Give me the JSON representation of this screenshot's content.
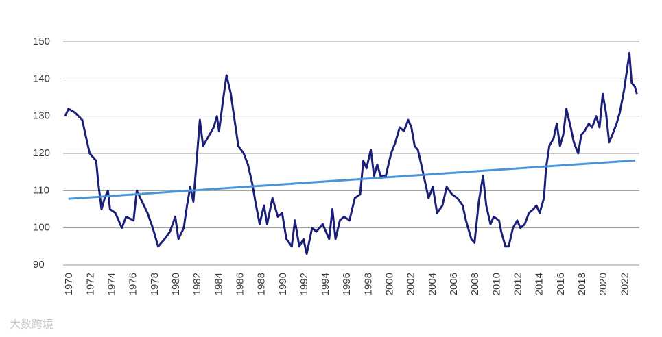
{
  "chart_data": {
    "type": "line",
    "watermark": "大数跨境",
    "xlim": [
      1969.6,
      2023.2
    ],
    "xticks": [
      1970,
      1972,
      1974,
      1976,
      1978,
      1980,
      1982,
      1984,
      1986,
      1988,
      1990,
      1992,
      1994,
      1996,
      1998,
      2000,
      2002,
      2004,
      2006,
      2008,
      2010,
      2012,
      2014,
      2016,
      2018,
      2020,
      2022
    ],
    "ylim": [
      90,
      150
    ],
    "yticks": [
      90,
      100,
      110,
      120,
      130,
      140,
      150
    ],
    "grid": true,
    "series": [
      {
        "color": "#1b1f77",
        "x": [
          1969.6,
          1969.9,
          1970.5,
          1971.2,
          1971.5,
          1971.9,
          1972.5,
          1972.7,
          1973.0,
          1973.3,
          1973.6,
          1973.8,
          1974.3,
          1974.9,
          1975.3,
          1976.0,
          1976.3,
          1976.8,
          1977.3,
          1977.8,
          1978.3,
          1978.9,
          1979.4,
          1979.9,
          1980.2,
          1980.7,
          1981.0,
          1981.3,
          1981.6,
          1981.9,
          1982.2,
          1982.5,
          1983.1,
          1983.5,
          1983.8,
          1984.0,
          1984.4,
          1984.7,
          1985.1,
          1985.4,
          1985.8,
          1986.3,
          1986.7,
          1987.1,
          1987.4,
          1987.8,
          1988.2,
          1988.5,
          1989.0,
          1989.5,
          1989.9,
          1990.3,
          1990.8,
          1991.1,
          1991.5,
          1991.9,
          1992.2,
          1992.7,
          1993.1,
          1993.7,
          1994.0,
          1994.3,
          1994.6,
          1994.9,
          1995.3,
          1995.7,
          1996.2,
          1996.7,
          1997.2,
          1997.5,
          1997.8,
          1998.2,
          1998.5,
          1998.8,
          1999.1,
          1999.6,
          2000.1,
          2000.5,
          2000.9,
          2001.3,
          2001.7,
          2002.0,
          2002.3,
          2002.6,
          2003.0,
          2003.3,
          2003.6,
          2004.0,
          2004.4,
          2004.9,
          2005.3,
          2005.8,
          2006.3,
          2006.8,
          2007.1,
          2007.6,
          2007.9,
          2008.3,
          2008.7,
          2009.0,
          2009.4,
          2009.7,
          2010.2,
          2010.4,
          2010.8,
          2011.1,
          2011.5,
          2011.9,
          2012.2,
          2012.6,
          2013.0,
          2013.4,
          2013.7,
          2014.0,
          2014.4,
          2014.6,
          2014.9,
          2015.3,
          2015.6,
          2015.9,
          2016.2,
          2016.5,
          2016.9,
          2017.2,
          2017.6,
          2017.9,
          2018.2,
          2018.6,
          2018.9,
          2019.3,
          2019.6,
          2019.9,
          2020.2,
          2020.5,
          2020.8,
          2021.2,
          2021.5,
          2021.9,
          2022.2,
          2022.4,
          2022.6,
          2022.9,
          2023.1
        ],
        "values": [
          130,
          132,
          131,
          129,
          125,
          120,
          118,
          112,
          105,
          108,
          110,
          105,
          104,
          100,
          103,
          102,
          110,
          107,
          104,
          100,
          95,
          97,
          99,
          103,
          97,
          100,
          106,
          111,
          107,
          118,
          129,
          122,
          125,
          127,
          130,
          126,
          135,
          141,
          136,
          130,
          122,
          120,
          117,
          112,
          107,
          101,
          106,
          101,
          108,
          103,
          104,
          97,
          95,
          102,
          95,
          97,
          93,
          100,
          99,
          101,
          99,
          97,
          105,
          97,
          102,
          103,
          102,
          108,
          109,
          118,
          116,
          121,
          114,
          117,
          114,
          114,
          120,
          123,
          127,
          126,
          129,
          127,
          122,
          121,
          116,
          112,
          108,
          111,
          104,
          106,
          111,
          109,
          108,
          106,
          102,
          97,
          96,
          107,
          114,
          106,
          101,
          103,
          102,
          99,
          95,
          95,
          100,
          102,
          100,
          101,
          104,
          105,
          106,
          104,
          108,
          116,
          122,
          124,
          128,
          122,
          125,
          132,
          127,
          123,
          120,
          125,
          126,
          128,
          127,
          130,
          127,
          136,
          131,
          123,
          125,
          128,
          131,
          137,
          143,
          147,
          139,
          138,
          136
        ]
      },
      {
        "color": "#4a94dc",
        "x": [
          1969.9,
          2022.95
        ],
        "values": [
          107.8,
          118.1
        ]
      }
    ]
  }
}
